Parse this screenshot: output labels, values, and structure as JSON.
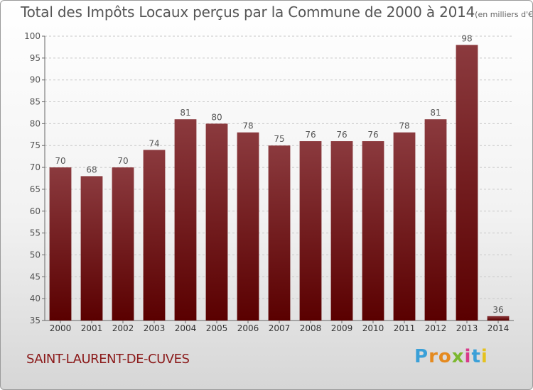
{
  "chart_data": {
    "type": "bar",
    "title": "Total des Impôts Locaux perçus par la Commune de 2000 à 2014",
    "subtitle": "(en milliers d'€)",
    "categories": [
      "2000",
      "2001",
      "2002",
      "2003",
      "2004",
      "2005",
      "2006",
      "2007",
      "2008",
      "2009",
      "2010",
      "2011",
      "2012",
      "2013",
      "2014"
    ],
    "values": [
      70,
      68,
      70,
      74,
      81,
      80,
      78,
      75,
      76,
      76,
      76,
      78,
      81,
      98,
      36
    ],
    "ylim": [
      35,
      100
    ],
    "yticks": [
      35,
      40,
      45,
      50,
      55,
      60,
      65,
      70,
      75,
      80,
      85,
      90,
      95,
      100
    ],
    "grid": true,
    "bar_color_top": "#8b3a3e",
    "bar_color_bottom": "#5a0000"
  },
  "commune": "SAINT-LAURENT-DE-CUVES",
  "logo": {
    "text": "Proxiti",
    "colors": [
      "#3aa0d8",
      "#e58a1f",
      "#e58a1f",
      "#7cb82f",
      "#d83a8a",
      "#3aa0d8",
      "#e5c21f"
    ]
  }
}
